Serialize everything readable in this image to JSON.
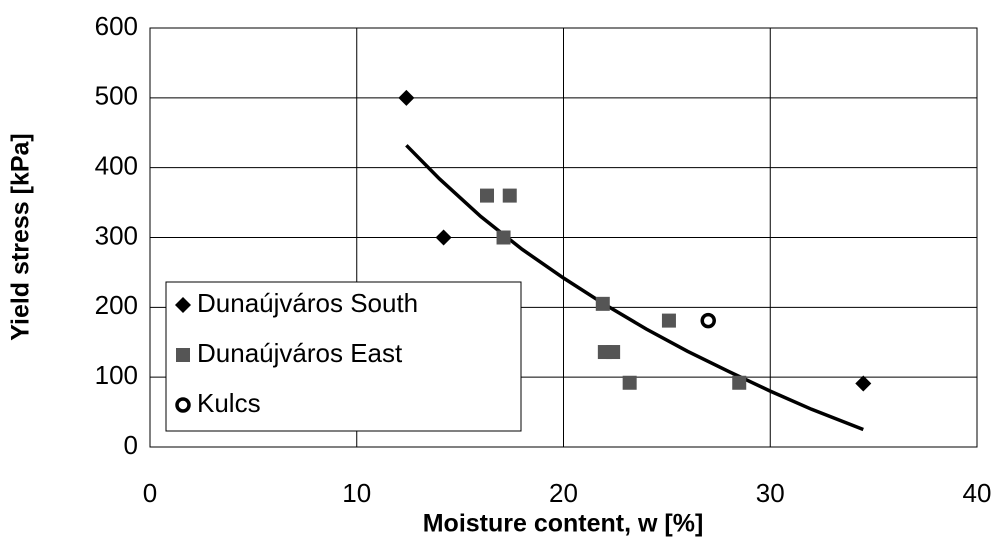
{
  "chart_data": {
    "type": "scatter",
    "xlabel": "Moisture content, w [%]",
    "ylabel": "Yield stress [kPa]",
    "xlim": [
      0,
      40
    ],
    "xticks": [
      0,
      10,
      20,
      30,
      40
    ],
    "ylim": [
      0,
      600
    ],
    "yticks": [
      0,
      100,
      200,
      300,
      400,
      500,
      600
    ],
    "grid": true,
    "legend": "lower left",
    "series": [
      {
        "name": "Dunaújváros South",
        "color": "#000000",
        "marker": "diamond",
        "x": [
          12.4,
          14.2,
          34.5
        ],
        "values": [
          500,
          300,
          91
        ]
      },
      {
        "name": "Dunaújváros East",
        "color": "#555555",
        "marker": "square",
        "x": [
          16.3,
          17.4,
          17.1,
          21.9,
          22.0,
          22.4,
          23.2,
          25.1,
          28.5
        ],
        "values": [
          360,
          360,
          300,
          205,
          136,
          136,
          92,
          181,
          92
        ]
      },
      {
        "name": "Kulcs",
        "color": "#000000",
        "marker": "circle",
        "x": [
          27.0
        ],
        "values": [
          181
        ]
      }
    ],
    "trend": {
      "color": "#000000",
      "x": [
        12.4,
        14,
        16,
        18,
        20,
        22,
        24,
        26,
        28,
        30,
        32,
        34.5
      ],
      "values": [
        432,
        384,
        330,
        283,
        242,
        204,
        169,
        137,
        108,
        80,
        54,
        25
      ]
    }
  }
}
